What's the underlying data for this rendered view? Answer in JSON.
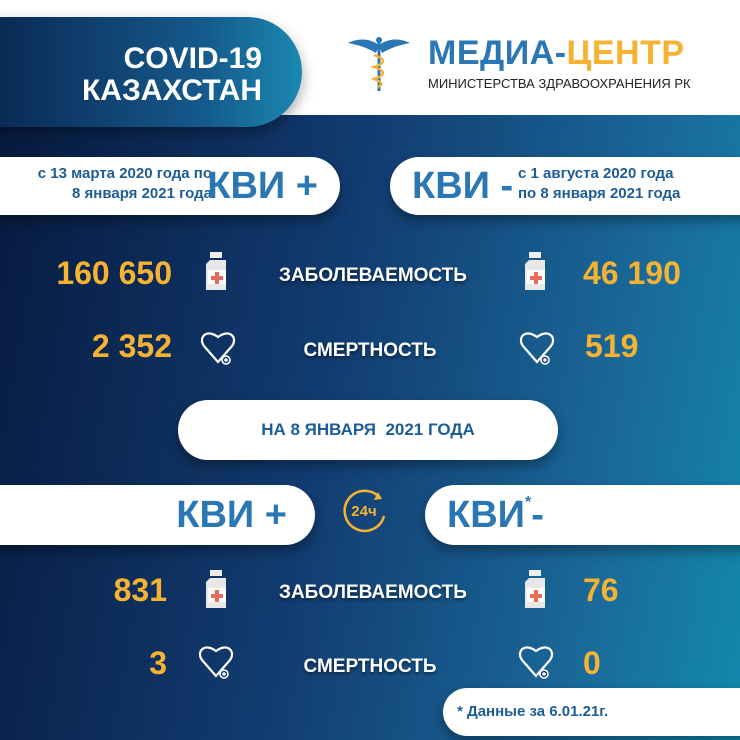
{
  "header": {
    "title_line1": "COVID-19",
    "title_line2": "КАЗАХСТАН",
    "logo_part1": "МЕДИА-",
    "logo_part2": "ЦЕНТР",
    "logo_subtitle": "МИНИСТЕРСТВА ЗДРАВООХРАНЕНИЯ РК"
  },
  "cumulative": {
    "positive": {
      "label": "КВИ +",
      "period_line1": "с 13 марта 2020 года по",
      "period_line2": "8 января 2021 года",
      "cases": "160 650",
      "deaths": "2 352"
    },
    "negative": {
      "label": "КВИ -",
      "period_line1": "с 1 августа  2020 года",
      "period_line2": "по 8 января 2021 года",
      "cases": "46 190",
      "deaths": "519"
    }
  },
  "labels": {
    "cases": "ЗАБОЛЕВАЕМОСТЬ",
    "deaths": "СМЕРТНОСТЬ"
  },
  "date_banner": "НА 8 ЯНВАРЯ  2021 ГОДА",
  "daily": {
    "icon_label": "24ч",
    "positive": {
      "label": "КВИ +",
      "cases": "831",
      "deaths": "3"
    },
    "negative": {
      "label": "КВИ",
      "asterisk": "*",
      "suffix": "-",
      "cases": "76",
      "deaths": "0"
    }
  },
  "footnote": "* Данные за 6.01.21г.",
  "colors": {
    "navy": "#0b1f4a",
    "teal": "#1289ad",
    "orange": "#f6b333",
    "blue": "#2a77b3"
  }
}
